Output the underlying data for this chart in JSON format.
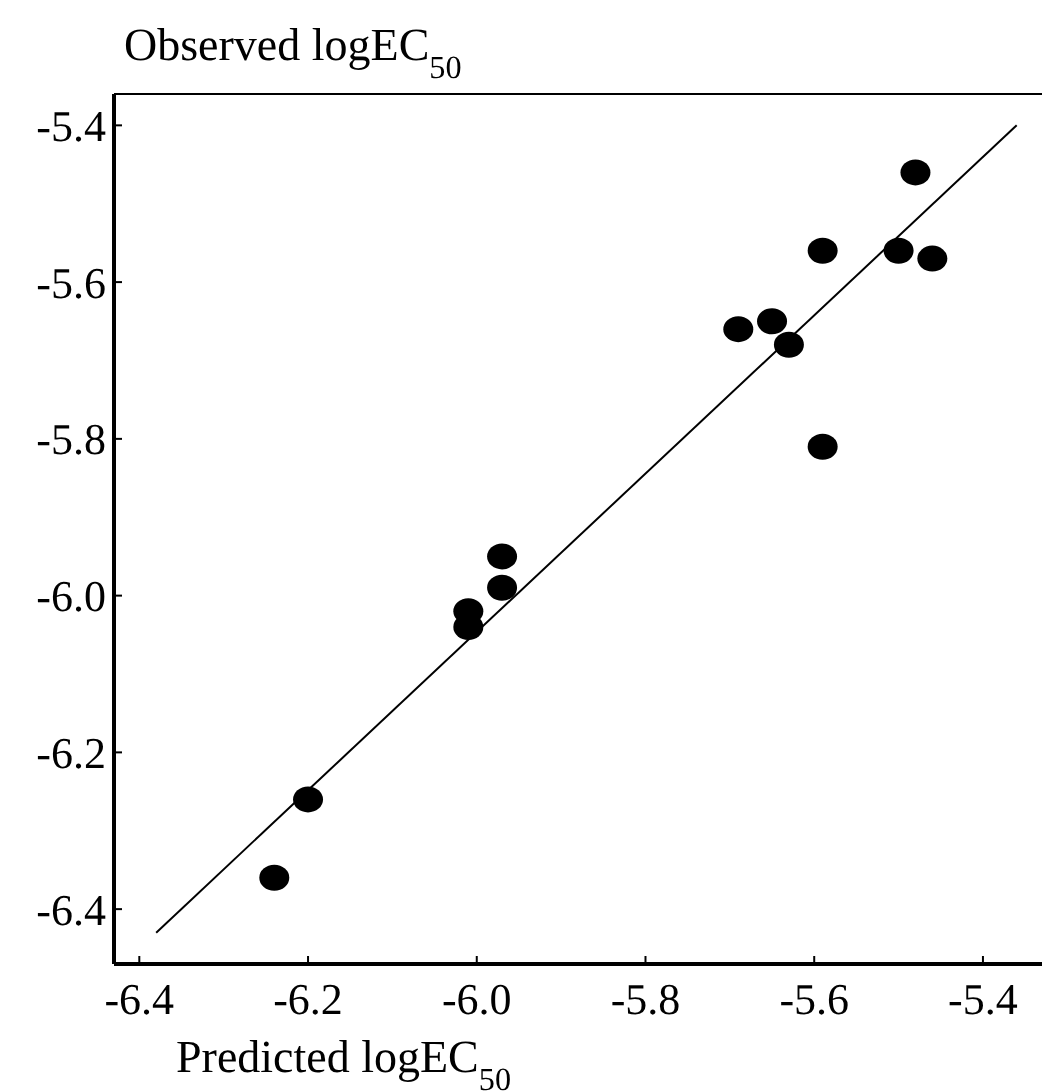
{
  "chart_data": {
    "type": "scatter",
    "xlabel": "Predicted logEC$_{50}$",
    "ylabel": "Observed logEC$_{50}$",
    "xlim": [
      -6.43,
      -5.33
    ],
    "ylim": [
      -6.47,
      -5.36
    ],
    "xticks": [
      {
        "value": -6.4,
        "label": "-6.4"
      },
      {
        "value": -6.2,
        "label": "-6.2"
      },
      {
        "value": -6.0,
        "label": "-6.0"
      },
      {
        "value": -5.8,
        "label": "-5.8"
      },
      {
        "value": -5.6,
        "label": "-5.6"
      },
      {
        "value": -5.4,
        "label": "-5.4"
      }
    ],
    "yticks": [
      {
        "value": -6.4,
        "label": "-6.4"
      },
      {
        "value": -6.2,
        "label": "-6.2"
      },
      {
        "value": -6.0,
        "label": "-6.0"
      },
      {
        "value": -5.8,
        "label": "-5.8"
      },
      {
        "value": -5.6,
        "label": "-5.6"
      },
      {
        "value": -5.4,
        "label": "-5.4"
      }
    ],
    "marker": "circle",
    "grid": false,
    "series": [
      {
        "color": "#000000",
        "x": [
          -6.24,
          -6.2,
          -6.01,
          -6.01,
          -5.97,
          -5.97,
          -5.69,
          -5.65,
          -5.63,
          -5.59,
          -5.59,
          -5.5,
          -5.48,
          -5.46
        ],
        "values": [
          -6.36,
          -6.26,
          -6.04,
          -6.02,
          -5.99,
          -5.95,
          -5.66,
          -5.65,
          -5.68,
          -5.56,
          -5.81,
          -5.56,
          -5.46,
          -5.57
        ]
      },
      {
        "type": "line",
        "marker": "none",
        "color": "#000000",
        "x": [
          -6.38,
          -5.36
        ],
        "values": [
          -6.43,
          -5.4
        ]
      }
    ]
  }
}
